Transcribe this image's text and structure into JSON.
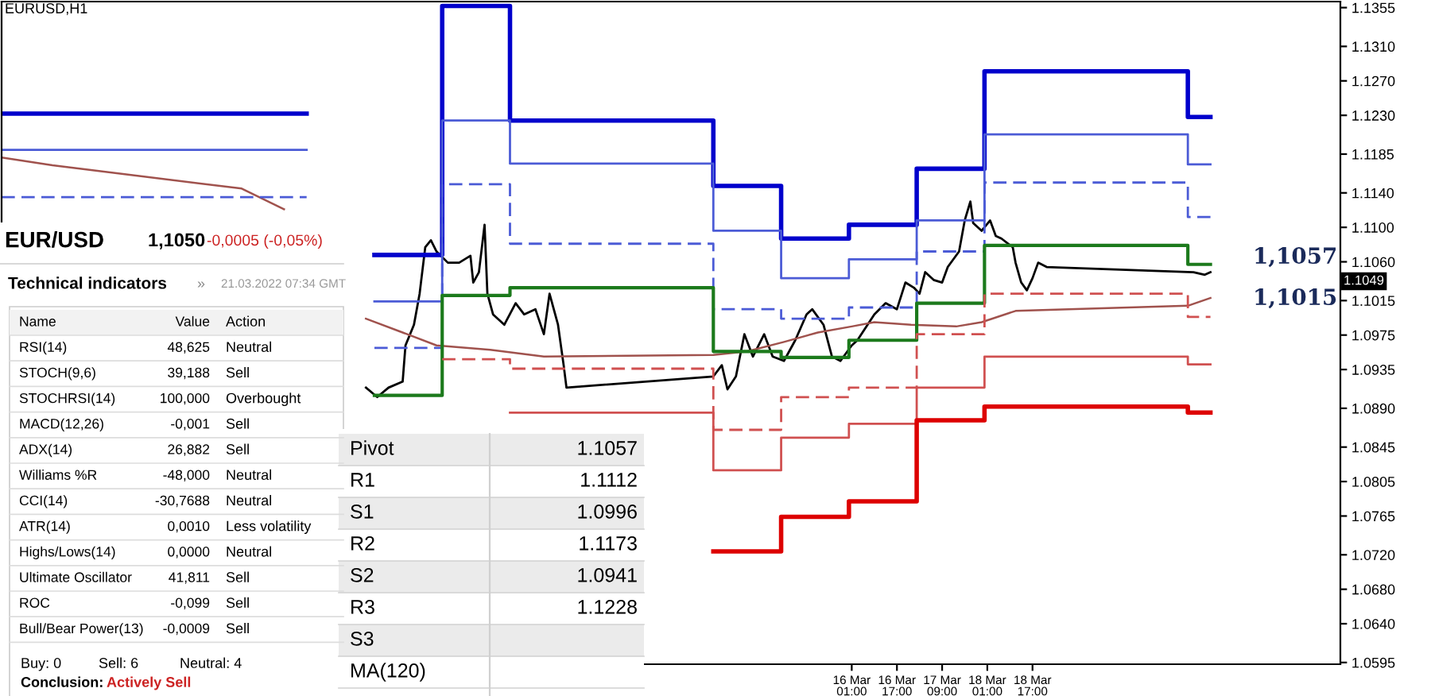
{
  "chart_data": {
    "type": "line",
    "xlim": [
      "2022-03-03T12:00",
      "2022-03-23T06:00"
    ],
    "xticks": [
      {
        "value": "2022-03-16T01:00",
        "label": "16 Mar 01:00"
      },
      {
        "value": "2022-03-16T17:00",
        "label": "16 Mar 17:00"
      },
      {
        "value": "2022-03-17T09:00",
        "label": "17 Mar 09:00"
      },
      {
        "value": "2022-03-18T01:00",
        "label": "18 Mar 01:00"
      },
      {
        "value": "2022-03-18T17:00",
        "label": "18 Mar 17:00"
      }
    ],
    "ylim": [
      1.0593,
      1.1362
    ],
    "yticks": [
      1.1355,
      {
        "value": 1.131,
        "label": "1.1310"
      },
      {
        "value": 1.127,
        "label": "1.1270"
      },
      {
        "value": 1.123,
        "label": "1.1230"
      },
      1.1185,
      {
        "value": 1.114,
        "label": "1.1140"
      },
      {
        "value": 1.11,
        "label": "1.1100"
      },
      {
        "value": 1.106,
        "label": "1.1060"
      },
      1.1015,
      1.0975,
      1.0935,
      {
        "value": 1.089,
        "label": "1.0890"
      },
      1.0845,
      1.0805,
      1.0765,
      {
        "value": 1.072,
        "label": "1.0720"
      },
      {
        "value": 1.068,
        "label": "1.0680"
      },
      {
        "value": 1.064,
        "label": "1.0640"
      },
      1.0595
    ],
    "grid": false,
    "series": [
      {
        "color": "#000000",
        "x": [
          "2022-03-08T21:00",
          "2022-03-09T01:00",
          "2022-03-09T05:00",
          "2022-03-09T10:00",
          "2022-03-09T11:00",
          "2022-03-09T14:00",
          "2022-03-09T16:00",
          "2022-03-09T18:00",
          "2022-03-09T20:00",
          "2022-03-09T22:00",
          "2022-03-10T02:00",
          "2022-03-10T06:00",
          "2022-03-10T10:00",
          "2022-03-10T11:00",
          "2022-03-10T13:00",
          "2022-03-10T15:00",
          "2022-03-10T16:00",
          "2022-03-10T18:00",
          "2022-03-10T22:00",
          "2022-03-11T02:00",
          "2022-03-11T05:00",
          "2022-03-11T09:00",
          "2022-03-11T12:00",
          "2022-03-11T14:00",
          "2022-03-11T17:00",
          "2022-03-11T19:00",
          "2022-03-11T20:00",
          "2022-03-14T00:00",
          "2022-03-14T03:00",
          "2022-03-14T05:00",
          "2022-03-14T08:00",
          "2022-03-14T11:00",
          "2022-03-14T14:00",
          "2022-03-14T18:00",
          "2022-03-14T21:00",
          "2022-03-15T01:00",
          "2022-03-15T05:00",
          "2022-03-15T09:00",
          "2022-03-15T11:00",
          "2022-03-15T15:00",
          "2022-03-15T18:00",
          "2022-03-15T21:00",
          "2022-03-16T01:00",
          "2022-03-16T03:00",
          "2022-03-16T09:00",
          "2022-03-16T13:00",
          "2022-03-16T17:00",
          "2022-03-16T20:00",
          "2022-03-16T23:00",
          "2022-03-17T01:00",
          "2022-03-17T03:00",
          "2022-03-17T06:00",
          "2022-03-17T09:00",
          "2022-03-17T11:00",
          "2022-03-17T15:00",
          "2022-03-17T17:00",
          "2022-03-17T19:00",
          "2022-03-17T20:00",
          "2022-03-17T23:00",
          "2022-03-18T02:00",
          "2022-03-18T04:00",
          "2022-03-18T06:00",
          "2022-03-18T10:00",
          "2022-03-18T11:00",
          "2022-03-18T13:00",
          "2022-03-18T15:00",
          "2022-03-18T17:00",
          "2022-03-18T19:00",
          "2022-03-18T22:00",
          "2022-03-21T02:00",
          "2022-03-21T06:00",
          "2022-03-21T08:00"
        ],
        "values": [
          1.0914,
          1.0903,
          1.0914,
          1.0921,
          1.0963,
          1.0987,
          1.1023,
          1.1077,
          1.1085,
          1.1072,
          1.1059,
          1.1059,
          1.1067,
          1.1036,
          1.1048,
          1.1103,
          1.1023,
          1.0999,
          1.0987,
          1.1012,
          1.0999,
          1.1005,
          1.0976,
          1.1023,
          1.0987,
          1.094,
          1.0914,
          1.0927,
          1.094,
          1.0912,
          1.0927,
          1.0976,
          1.095,
          1.0976,
          1.095,
          1.0945,
          1.0969,
          1.0999,
          1.1005,
          1.0987,
          1.095,
          1.0945,
          1.0963,
          1.0969,
          1.0999,
          1.1012,
          1.1005,
          1.1036,
          1.103,
          1.1023,
          1.1048,
          1.1039,
          1.1036,
          1.1054,
          1.1072,
          1.1108,
          1.113,
          1.1105,
          1.1096,
          1.1108,
          1.109,
          1.1087,
          1.1077,
          1.1059,
          1.1036,
          1.1027,
          1.1041,
          1.1059,
          1.1054,
          1.1048,
          1.1045,
          1.1048
        ]
      },
      {
        "color": "#a0524d",
        "x": [
          "2022-03-03T12:00",
          "2022-03-04T06:00",
          "2022-03-07T01:00",
          "2022-03-07T16:00",
          "2022-03-08T15:00",
          "2022-03-08T21:00",
          "2022-03-09T10:00",
          "2022-03-09T22:00",
          "2022-03-10T17:00",
          "2022-03-11T12:00",
          "2022-03-14T00:00",
          "2022-03-14T12:00",
          "2022-03-15T01:00",
          "2022-03-15T13:00",
          "2022-03-16T01:00",
          "2022-03-16T09:00",
          "2022-03-16T22:00",
          "2022-03-17T14:00",
          "2022-03-17T23:00",
          "2022-03-18T11:00",
          "2022-03-21T00:00",
          "2022-03-21T08:00"
        ],
        "values": [
          1.1181,
          1.1172,
          1.1145,
          1.1121,
          null,
          1.0994,
          1.0978,
          1.0963,
          1.0958,
          1.095,
          1.0952,
          1.0956,
          1.0967,
          1.0978,
          1.0985,
          1.099,
          1.0987,
          1.0985,
          1.099,
          1.1003,
          1.1009,
          1.1018
        ]
      },
      {
        "type": "step",
        "color": "#0000cc",
        "x": [
          "2022-03-03T12:00",
          "2022-03-08T00:00",
          "2022-03-09T00:00",
          "2022-03-10T00:00",
          "2022-03-11T00:00",
          "2022-03-14T00:00",
          "2022-03-15T00:00",
          "2022-03-16T00:00",
          "2022-03-17T00:00",
          "2022-03-18T00:00",
          "2022-03-21T00:00",
          "2022-03-21T08:00"
        ],
        "values": [
          1.1232,
          null,
          1.1068,
          1.1357,
          1.1224,
          1.1148,
          1.1087,
          1.1103,
          1.1168,
          1.1281,
          1.1228,
          1.1228
        ]
      },
      {
        "type": "step",
        "color": "#4b5bd6",
        "x": [
          "2022-03-03T12:00",
          "2022-03-08T00:00",
          "2022-03-09T00:00",
          "2022-03-10T00:00",
          "2022-03-11T00:00",
          "2022-03-14T00:00",
          "2022-03-15T00:00",
          "2022-03-16T00:00",
          "2022-03-17T00:00",
          "2022-03-18T00:00",
          "2022-03-21T00:00",
          "2022-03-21T08:00"
        ],
        "values": [
          1.119,
          null,
          1.1014,
          1.1224,
          1.1174,
          1.1096,
          1.1041,
          1.1063,
          1.1108,
          1.1208,
          1.1173,
          1.1173
        ]
      },
      {
        "type": "step",
        "color": "#4b5bd6",
        "line_style": "dashed",
        "x": [
          "2022-03-03T12:00",
          "2022-03-08T00:00",
          "2022-03-09T00:00",
          "2022-03-10T00:00",
          "2022-03-11T00:00",
          "2022-03-14T00:00",
          "2022-03-15T00:00",
          "2022-03-16T00:00",
          "2022-03-17T00:00",
          "2022-03-18T00:00",
          "2022-03-21T00:00",
          "2022-03-21T08:00"
        ],
        "values": [
          1.1135,
          null,
          1.096,
          1.115,
          1.1081,
          1.1005,
          1.0994,
          1.1007,
          1.1072,
          1.1152,
          1.1112,
          1.1112
        ]
      },
      {
        "type": "step",
        "color": "#1c7a1c",
        "x": [
          "2022-03-09T00:00",
          "2022-03-10T00:00",
          "2022-03-11T00:00",
          "2022-03-14T00:00",
          "2022-03-15T00:00",
          "2022-03-16T00:00",
          "2022-03-17T00:00",
          "2022-03-18T00:00",
          "2022-03-21T00:00",
          "2022-03-21T08:00"
        ],
        "values": [
          1.0905,
          1.1021,
          1.103,
          1.0956,
          1.0949,
          1.0969,
          1.1012,
          1.1079,
          1.1057,
          1.1057
        ]
      },
      {
        "type": "step",
        "color": "#d05050",
        "line_style": "dashed",
        "x": [
          "2022-03-10T00:00",
          "2022-03-11T00:00",
          "2022-03-14T00:00",
          "2022-03-15T00:00",
          "2022-03-16T00:00",
          "2022-03-17T00:00",
          "2022-03-18T00:00",
          "2022-03-21T00:00",
          "2022-03-21T08:00"
        ],
        "values": [
          1.0947,
          1.0936,
          1.0865,
          1.0903,
          1.0914,
          1.0976,
          1.1023,
          1.0996,
          1.0996
        ]
      },
      {
        "type": "step",
        "color": "#d05050",
        "x": [
          "2022-03-11T00:00",
          "2022-03-14T00:00",
          "2022-03-15T00:00",
          "2022-03-16T00:00",
          "2022-03-17T00:00",
          "2022-03-18T00:00",
          "2022-03-21T00:00",
          "2022-03-21T08:00"
        ],
        "values": [
          1.0885,
          1.0818,
          1.0856,
          1.0872,
          1.0914,
          1.095,
          1.0941,
          1.0941
        ]
      },
      {
        "type": "step",
        "color": "#dd0000",
        "x": [
          "2022-03-14T00:00",
          "2022-03-15T00:00",
          "2022-03-16T00:00",
          "2022-03-17T00:00",
          "2022-03-18T00:00",
          "2022-03-21T00:00",
          "2022-03-21T08:00"
        ],
        "values": [
          1.0724,
          1.0764,
          1.0782,
          1.0876,
          1.0892,
          1.0885,
          1.0885
        ]
      }
    ],
    "annotations": [
      "EURUSD,H1",
      "1,1057",
      "1,1015",
      "1.1049",
      "EUR/USD\t1,1050\t-0,0005 (-0,05%)",
      "Technical indicators\t»\t21.03.2022 07:34 GMT",
      "Name\tValue\tAction",
      "RSI(14)\t48,625\tNeutral",
      "STOCH(9,6)\t39,188\tSell",
      "STOCHRSI(14)\t100,000\tOverbought",
      "MACD(12,26)\t-0,001\tSell",
      "ADX(14)\t26,882\tSell",
      "Williams %R\t-48,000\tNeutral",
      "CCI(14)\t-30,7688\tNeutral",
      "ATR(14)\t0,0010\tLess volatility",
      "Highs/Lows(14)\t0,0000\tNeutral",
      "Ultimate Oscillator\t41,811\tSell",
      "ROC\t-0,099\tSell",
      "Bull/Bear Power(13)\t-0,0009\tSell",
      "Buy: 0\tSell: 6\tNeutral: 4",
      "Conclusion:\tActively Sell",
      "Pivot\t1.1057",
      "R1\t1.1112",
      "S1\t1.0996",
      "R2\t1.1173",
      "S2\t1.0941",
      "R3\t1.1228",
      "S3",
      "MA(120)"
    ]
  }
}
